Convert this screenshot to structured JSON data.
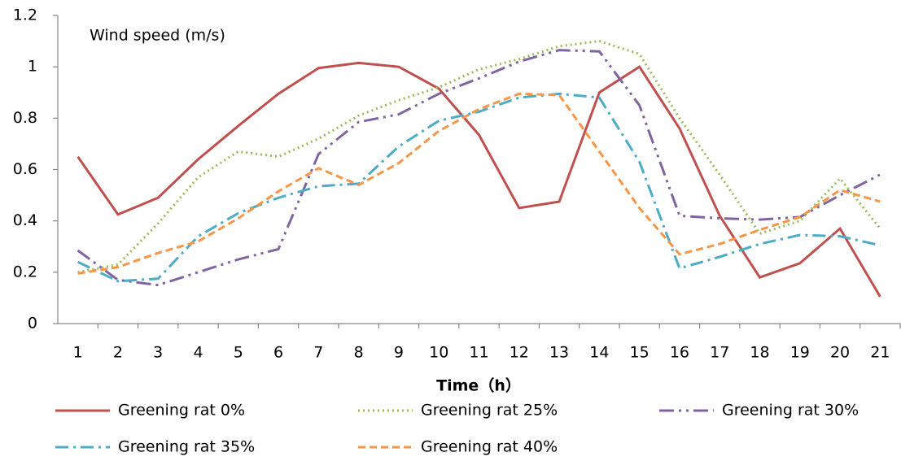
{
  "chart_data": {
    "type": "line",
    "annotation": "Wind speed (m/s)",
    "x_label": "Time（h）",
    "categories": [
      "1",
      "2",
      "3",
      "4",
      "5",
      "6",
      "7",
      "8",
      "9",
      "10",
      "11",
      "12",
      "13",
      "14",
      "15",
      "16",
      "17",
      "18",
      "19",
      "20",
      "21"
    ],
    "ylim": [
      0,
      1.2
    ],
    "yticks": [
      0,
      0.2,
      0.4,
      0.6,
      0.8,
      1,
      1.2
    ],
    "grid": false,
    "series": [
      {
        "name": "Greening rat 0%",
        "color": "#c0504d",
        "values": [
          0.65,
          0.425,
          0.49,
          0.64,
          0.77,
          0.895,
          0.995,
          1.015,
          1.0,
          0.915,
          0.735,
          0.45,
          0.475,
          0.9,
          1.0,
          0.76,
          0.42,
          0.18,
          0.235,
          0.37,
          0.105
        ]
      },
      {
        "name": "Greening rat 25%",
        "color": "#9bbb59",
        "values": [
          0.2,
          0.23,
          0.39,
          0.57,
          0.67,
          0.65,
          0.72,
          0.81,
          0.87,
          0.92,
          0.99,
          1.03,
          1.08,
          1.1,
          1.05,
          0.8,
          0.58,
          0.35,
          0.4,
          0.565,
          0.37
        ]
      },
      {
        "name": "Greening rat 30%",
        "color": "#8064a2",
        "values": [
          0.285,
          0.17,
          0.15,
          0.2,
          0.25,
          0.29,
          0.66,
          0.785,
          0.815,
          0.895,
          0.955,
          1.02,
          1.065,
          1.06,
          0.85,
          0.42,
          0.41,
          0.405,
          0.415,
          0.5,
          0.58
        ]
      },
      {
        "name": "Greening rat 35%",
        "color": "#4bacc6",
        "values": [
          0.24,
          0.165,
          0.175,
          0.34,
          0.43,
          0.49,
          0.535,
          0.545,
          0.69,
          0.79,
          0.825,
          0.88,
          0.895,
          0.88,
          0.63,
          0.215,
          0.26,
          0.31,
          0.345,
          0.34,
          0.305
        ]
      },
      {
        "name": "Greening rat 40%",
        "color": "#f79646",
        "values": [
          0.195,
          0.22,
          0.275,
          0.32,
          0.41,
          0.515,
          0.605,
          0.54,
          0.625,
          0.75,
          0.835,
          0.895,
          0.89,
          0.67,
          0.45,
          0.27,
          0.31,
          0.365,
          0.415,
          0.52,
          0.475
        ]
      }
    ]
  }
}
